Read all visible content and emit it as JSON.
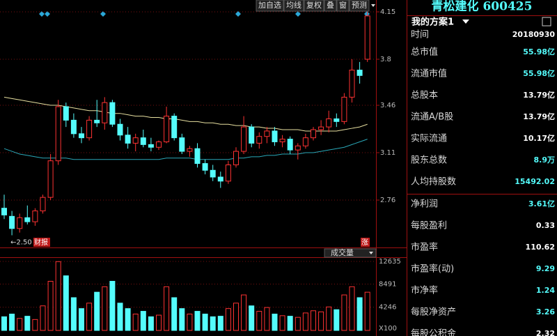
{
  "toolbar": [
    "加自选",
    "均线",
    "复权",
    "叠",
    "窗",
    "预测"
  ],
  "panel": {
    "title": "青松建化 600425",
    "plan": "我的方案1",
    "rows": [
      {
        "label": "时间",
        "value": "20180930",
        "color": "#ffffff"
      },
      {
        "label": "总市值",
        "value": "55.98亿",
        "color": "#54fcfc"
      },
      {
        "label": "流通市值",
        "value": "55.98亿",
        "color": "#54fcfc"
      },
      {
        "label": "总股本",
        "value": "13.79亿",
        "color": "#ffffff"
      },
      {
        "label": "流通A/B股",
        "value": "13.79亿",
        "color": "#ffffff"
      },
      {
        "label": "实际流通",
        "value": "10.17亿",
        "color": "#ffffff"
      },
      {
        "label": "股东总数",
        "value": "8.9万",
        "color": "#54fcfc"
      },
      {
        "label": "人均持股数",
        "value": "15492.02",
        "color": "#54fcfc"
      },
      {
        "label": "净利润",
        "value": "3.61亿",
        "color": "#54fcfc"
      },
      {
        "label": "每股盈利",
        "value": "0.33",
        "color": "#ffffff"
      },
      {
        "label": "市盈率",
        "value": "110.62",
        "color": "#ffffff"
      },
      {
        "label": "市盈率(动)",
        "value": "9.29",
        "color": "#54fcfc"
      },
      {
        "label": "市净率",
        "value": "1.24",
        "color": "#54fcfc"
      },
      {
        "label": "每股净资产",
        "value": "3.26",
        "color": "#54fcfc"
      },
      {
        "label": "每股公积金",
        "value": "2.32",
        "color": "#ffffff"
      }
    ]
  },
  "chart_data": [
    {
      "type": "candlestick",
      "open": [
        2.7,
        2.64,
        2.55,
        2.63,
        2.6,
        2.68,
        2.78,
        3.05,
        3.45,
        3.35,
        3.25,
        3.22,
        3.35,
        3.33,
        3.48,
        3.32,
        3.24,
        3.18,
        3.22,
        3.17,
        3.15,
        3.19,
        3.38,
        3.22,
        3.12,
        3.14,
        3.03,
        2.98,
        2.93,
        2.9,
        3.02,
        3.12,
        3.3,
        3.18,
        3.23,
        3.27,
        3.19,
        3.21,
        3.13,
        3.16,
        3.22,
        3.28,
        3.3,
        3.36,
        3.34,
        3.52,
        3.72,
        3.8
      ],
      "high": [
        2.8,
        2.68,
        2.66,
        2.72,
        2.7,
        2.8,
        3.1,
        3.5,
        3.48,
        3.4,
        3.3,
        3.38,
        3.5,
        3.52,
        3.5,
        3.36,
        3.3,
        3.25,
        3.28,
        3.22,
        3.2,
        3.45,
        3.4,
        3.25,
        3.16,
        3.18,
        3.06,
        3.02,
        2.97,
        3.05,
        3.15,
        3.38,
        3.32,
        3.26,
        3.3,
        3.3,
        3.24,
        3.23,
        3.18,
        3.25,
        3.3,
        3.35,
        3.42,
        3.4,
        3.55,
        3.8,
        3.78,
        4.15
      ],
      "low": [
        2.62,
        2.5,
        2.52,
        2.58,
        2.57,
        2.66,
        2.76,
        3.02,
        3.3,
        3.22,
        3.18,
        3.2,
        3.3,
        3.28,
        3.3,
        3.2,
        3.14,
        3.12,
        3.15,
        3.12,
        3.13,
        3.18,
        3.2,
        3.1,
        3.08,
        3.0,
        2.95,
        2.9,
        2.85,
        2.88,
        3.0,
        3.1,
        3.15,
        3.14,
        3.18,
        3.16,
        3.15,
        3.1,
        3.06,
        3.14,
        3.2,
        3.24,
        3.26,
        3.3,
        3.32,
        3.48,
        3.62,
        3.78
      ],
      "close": [
        2.65,
        2.55,
        2.63,
        2.6,
        2.68,
        2.78,
        3.05,
        3.45,
        3.35,
        3.25,
        3.22,
        3.35,
        3.33,
        3.48,
        3.32,
        3.24,
        3.18,
        3.22,
        3.17,
        3.15,
        3.19,
        3.38,
        3.22,
        3.12,
        3.14,
        3.03,
        2.98,
        2.93,
        2.9,
        3.02,
        3.12,
        3.3,
        3.18,
        3.23,
        3.27,
        3.19,
        3.21,
        3.13,
        3.16,
        3.22,
        3.28,
        3.3,
        3.36,
        3.34,
        3.52,
        3.72,
        3.68,
        4.12
      ],
      "lines": [
        {
          "color": "#e8e0a0",
          "values": [
            3.52,
            3.51,
            3.5,
            3.49,
            3.48,
            3.47,
            3.46,
            3.46,
            3.45,
            3.44,
            3.43,
            3.42,
            3.42,
            3.41,
            3.4,
            3.4,
            3.39,
            3.38,
            3.38,
            3.37,
            3.37,
            3.36,
            3.36,
            3.35,
            3.34,
            3.34,
            3.33,
            3.33,
            3.32,
            3.32,
            3.31,
            3.31,
            3.3,
            3.3,
            3.29,
            3.29,
            3.28,
            3.28,
            3.28,
            3.27,
            3.27,
            3.27,
            3.27,
            3.27,
            3.28,
            3.29,
            3.3,
            3.32
          ]
        },
        {
          "color": "#2aa8b8",
          "values": [
            3.14,
            3.12,
            3.1,
            3.09,
            3.08,
            3.07,
            3.07,
            3.07,
            3.07,
            3.06,
            3.06,
            3.06,
            3.06,
            3.06,
            3.06,
            3.06,
            3.06,
            3.06,
            3.06,
            3.06,
            3.06,
            3.07,
            3.07,
            3.07,
            3.07,
            3.06,
            3.06,
            3.06,
            3.06,
            3.06,
            3.07,
            3.07,
            3.08,
            3.08,
            3.09,
            3.09,
            3.1,
            3.1,
            3.1,
            3.11,
            3.11,
            3.12,
            3.13,
            3.14,
            3.15,
            3.17,
            3.19,
            3.21
          ]
        }
      ],
      "up_color": "#ff3232",
      "down_color": "#54fcfc",
      "ylim": [
        2.41,
        4.15
      ],
      "yticks": [
        4.15,
        3.8,
        3.46,
        3.11,
        2.76
      ],
      "grid": true,
      "low_label": "←2.50",
      "tags": [
        "财报",
        "涨"
      ]
    },
    {
      "type": "volume",
      "title": "成交量",
      "values": [
        2500,
        3000,
        2200,
        2600,
        2000,
        4500,
        9000,
        12600,
        10000,
        6000,
        4000,
        5000,
        7000,
        8000,
        9000,
        5000,
        4000,
        3000,
        3500,
        2500,
        2800,
        8000,
        6000,
        4000,
        3000,
        3500,
        3000,
        2500,
        2600,
        4000,
        5000,
        6500,
        4500,
        3500,
        4200,
        3000,
        2700,
        2600,
        2400,
        3200,
        3600,
        3400,
        4300,
        3800,
        6500,
        8000,
        6000,
        7000
      ],
      "ylim": [
        0,
        12635
      ],
      "yticks": [
        12635,
        8491,
        4246
      ],
      "unit": "X100",
      "grid": true
    }
  ]
}
